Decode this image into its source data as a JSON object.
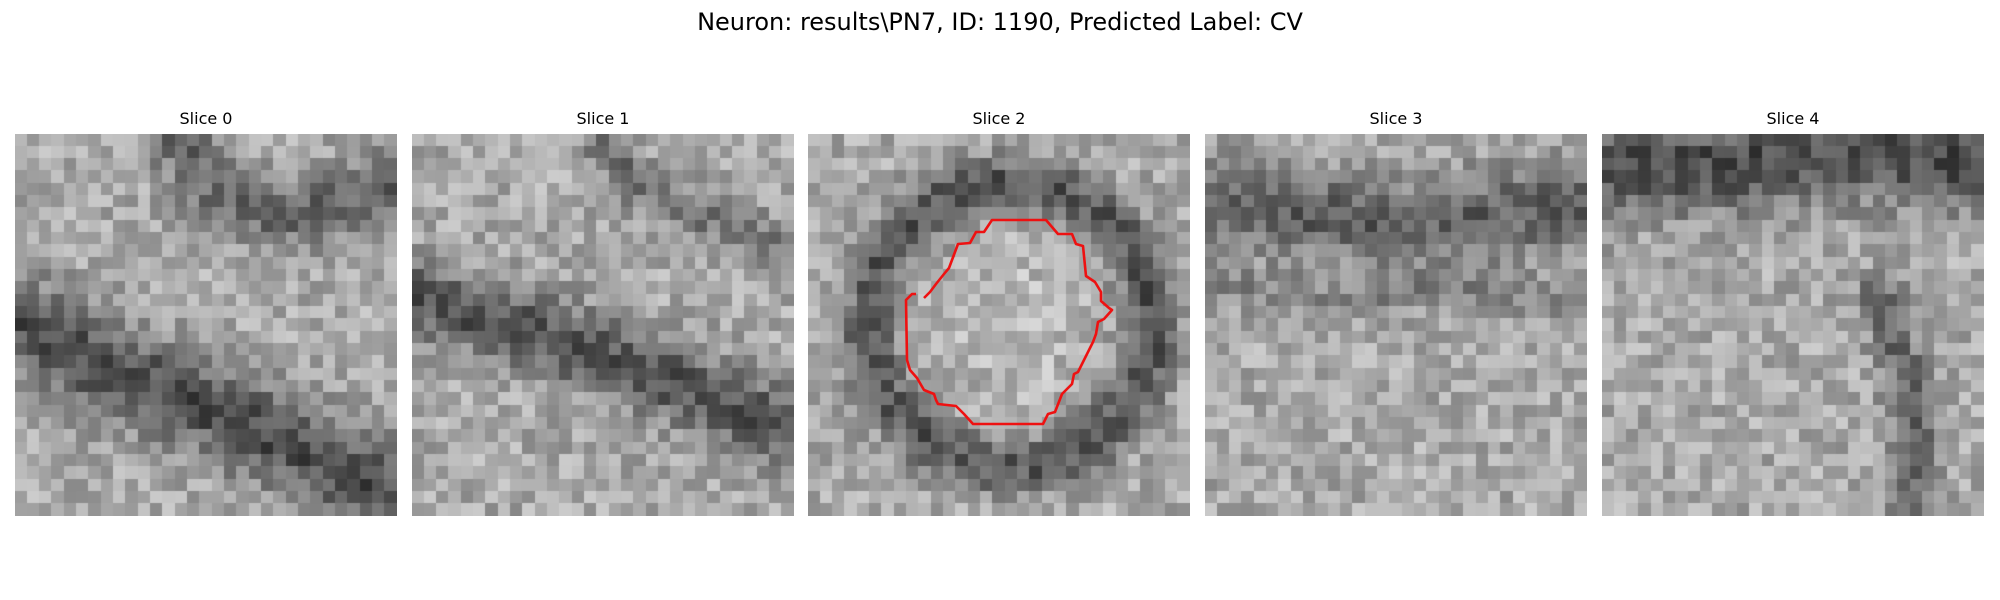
{
  "figure": {
    "title": "Neuron: results\\PN7, ID: 1190, Predicted Label: CV"
  },
  "slices": [
    {
      "title": "Slice 0"
    },
    {
      "title": "Slice 1"
    },
    {
      "title": "Slice 2"
    },
    {
      "title": "Slice 3"
    },
    {
      "title": "Slice 4"
    }
  ],
  "overlay": {
    "slice_index": 2,
    "contour_color": "#ee1111"
  }
}
